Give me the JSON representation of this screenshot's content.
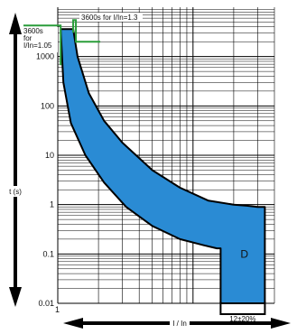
{
  "chart_data": {
    "type": "line",
    "title": "",
    "xlabel": "I / In",
    "ylabel": "t (s)",
    "xscale": "log",
    "yscale": "log",
    "xlim": [
      1,
      40
    ],
    "ylim": [
      0.01,
      10000
    ],
    "grid": true,
    "y_ticks": [
      "1000",
      "100",
      "10",
      "1",
      "0.1",
      "0.01"
    ],
    "x_ticks": [
      "1"
    ],
    "curve_label": "D",
    "band_color": "#2a8bd4",
    "band_edge_color": "#000000",
    "annotation_color": "#2a9d3a",
    "annotations": {
      "upper_limit": "3600s for I/In=1.3",
      "lower_limit_line1": "3600s",
      "lower_limit_line2": "for",
      "lower_limit_line3": "I/In=1.05",
      "instantaneous": "12±20%"
    },
    "series": [
      {
        "name": "",
        "x": [
          1.3,
          1.4,
          1.7,
          2.2,
          3,
          5,
          8,
          13,
          20,
          25,
          30,
          34
        ],
        "y": [
          3600,
          1000,
          180,
          50,
          18,
          5,
          2.2,
          1.2,
          1.0,
          0.95,
          0.9,
          0.9
        ]
      },
      {
        "name": "",
        "x": [
          1.05,
          1.1,
          1.25,
          1.6,
          2.2,
          3.2,
          5,
          8,
          12,
          15,
          16
        ],
        "y": [
          3600,
          300,
          45,
          10,
          2.8,
          0.9,
          0.37,
          0.2,
          0.15,
          0.13,
          0.13
        ]
      }
    ],
    "instantaneous_band": {
      "x_min": 16,
      "x_max": 34,
      "t_min": 0.01
    }
  }
}
